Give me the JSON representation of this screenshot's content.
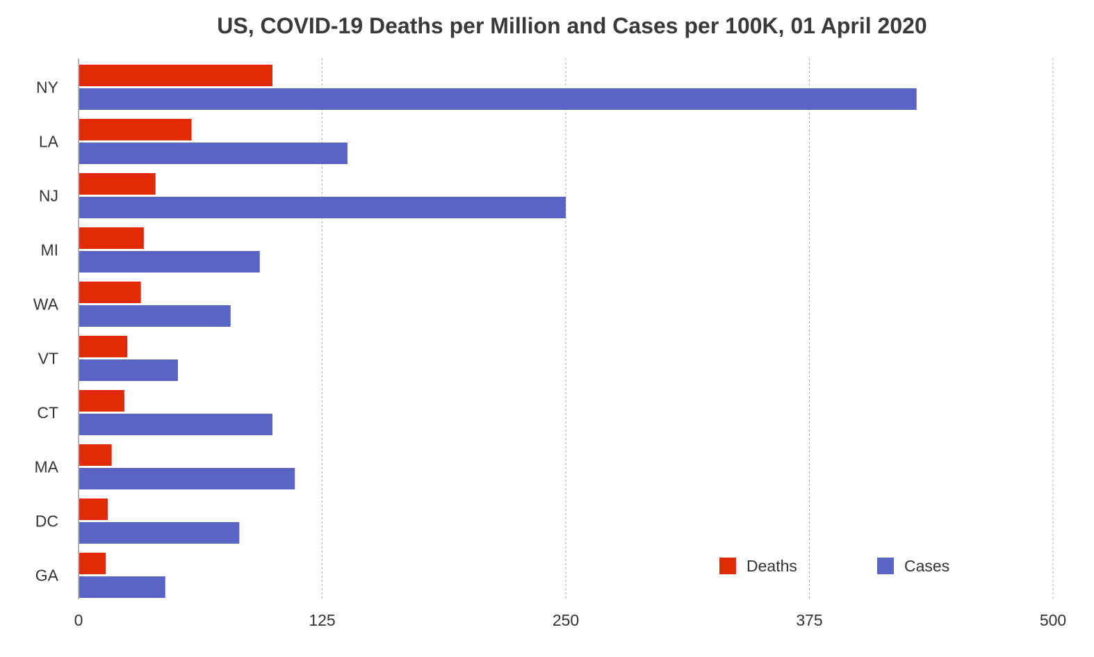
{
  "chart_data": {
    "type": "bar",
    "orientation": "horizontal",
    "title": "US, COVID-19 Deaths per Million and Cases per 100K, 01 April 2020",
    "xlabel": "",
    "ylabel": "",
    "categories": [
      "NY",
      "LA",
      "NJ",
      "MI",
      "WA",
      "VT",
      "CT",
      "MA",
      "DC",
      "GA"
    ],
    "series": [
      {
        "name": "Deaths",
        "color": "#e22a06",
        "values": [
          99.5,
          58,
          39.5,
          33.5,
          32,
          25,
          23.5,
          17,
          15,
          14
        ]
      },
      {
        "name": "Cases",
        "color": "#5964c4",
        "values": [
          430,
          138,
          250,
          93,
          78,
          51,
          99.5,
          111,
          82.5,
          44.5
        ]
      }
    ],
    "xlim": [
      0,
      500
    ],
    "xticks": [
      "0",
      "125",
      "250",
      "375",
      "500"
    ],
    "grid": "vertical-dashed",
    "legend": "bottom-right"
  }
}
